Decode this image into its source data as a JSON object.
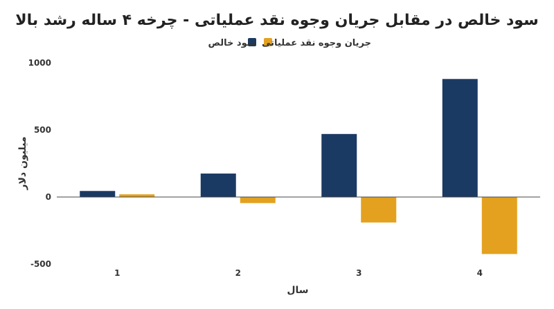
{
  "colors": {
    "net_profit": "#1b3a63",
    "operating_cash_flow": "#e3a11f",
    "axis": "#444444",
    "text": "#333333"
  },
  "chart_data": {
    "type": "bar",
    "title": "سود خالص در مقابل جریان وجوه نقد عملیاتی - چرخه ۴ ساله رشد بالا",
    "xlabel": "سال",
    "ylabel": "میلیون دلار",
    "categories": [
      "1",
      "2",
      "3",
      "4"
    ],
    "series": [
      {
        "name": "سود خالص",
        "values": [
          45,
          175,
          470,
          880
        ]
      },
      {
        "name": "جریان وجوه نقد عملیاتی",
        "values": [
          20,
          -45,
          -190,
          -425
        ]
      }
    ],
    "ylim": [
      -500,
      1000
    ],
    "yticks": [
      -500,
      0,
      500,
      1000
    ],
    "ytick_labels": [
      "-500",
      "0",
      "500",
      "1000"
    ],
    "grid": false,
    "legend_position": "top-center"
  }
}
